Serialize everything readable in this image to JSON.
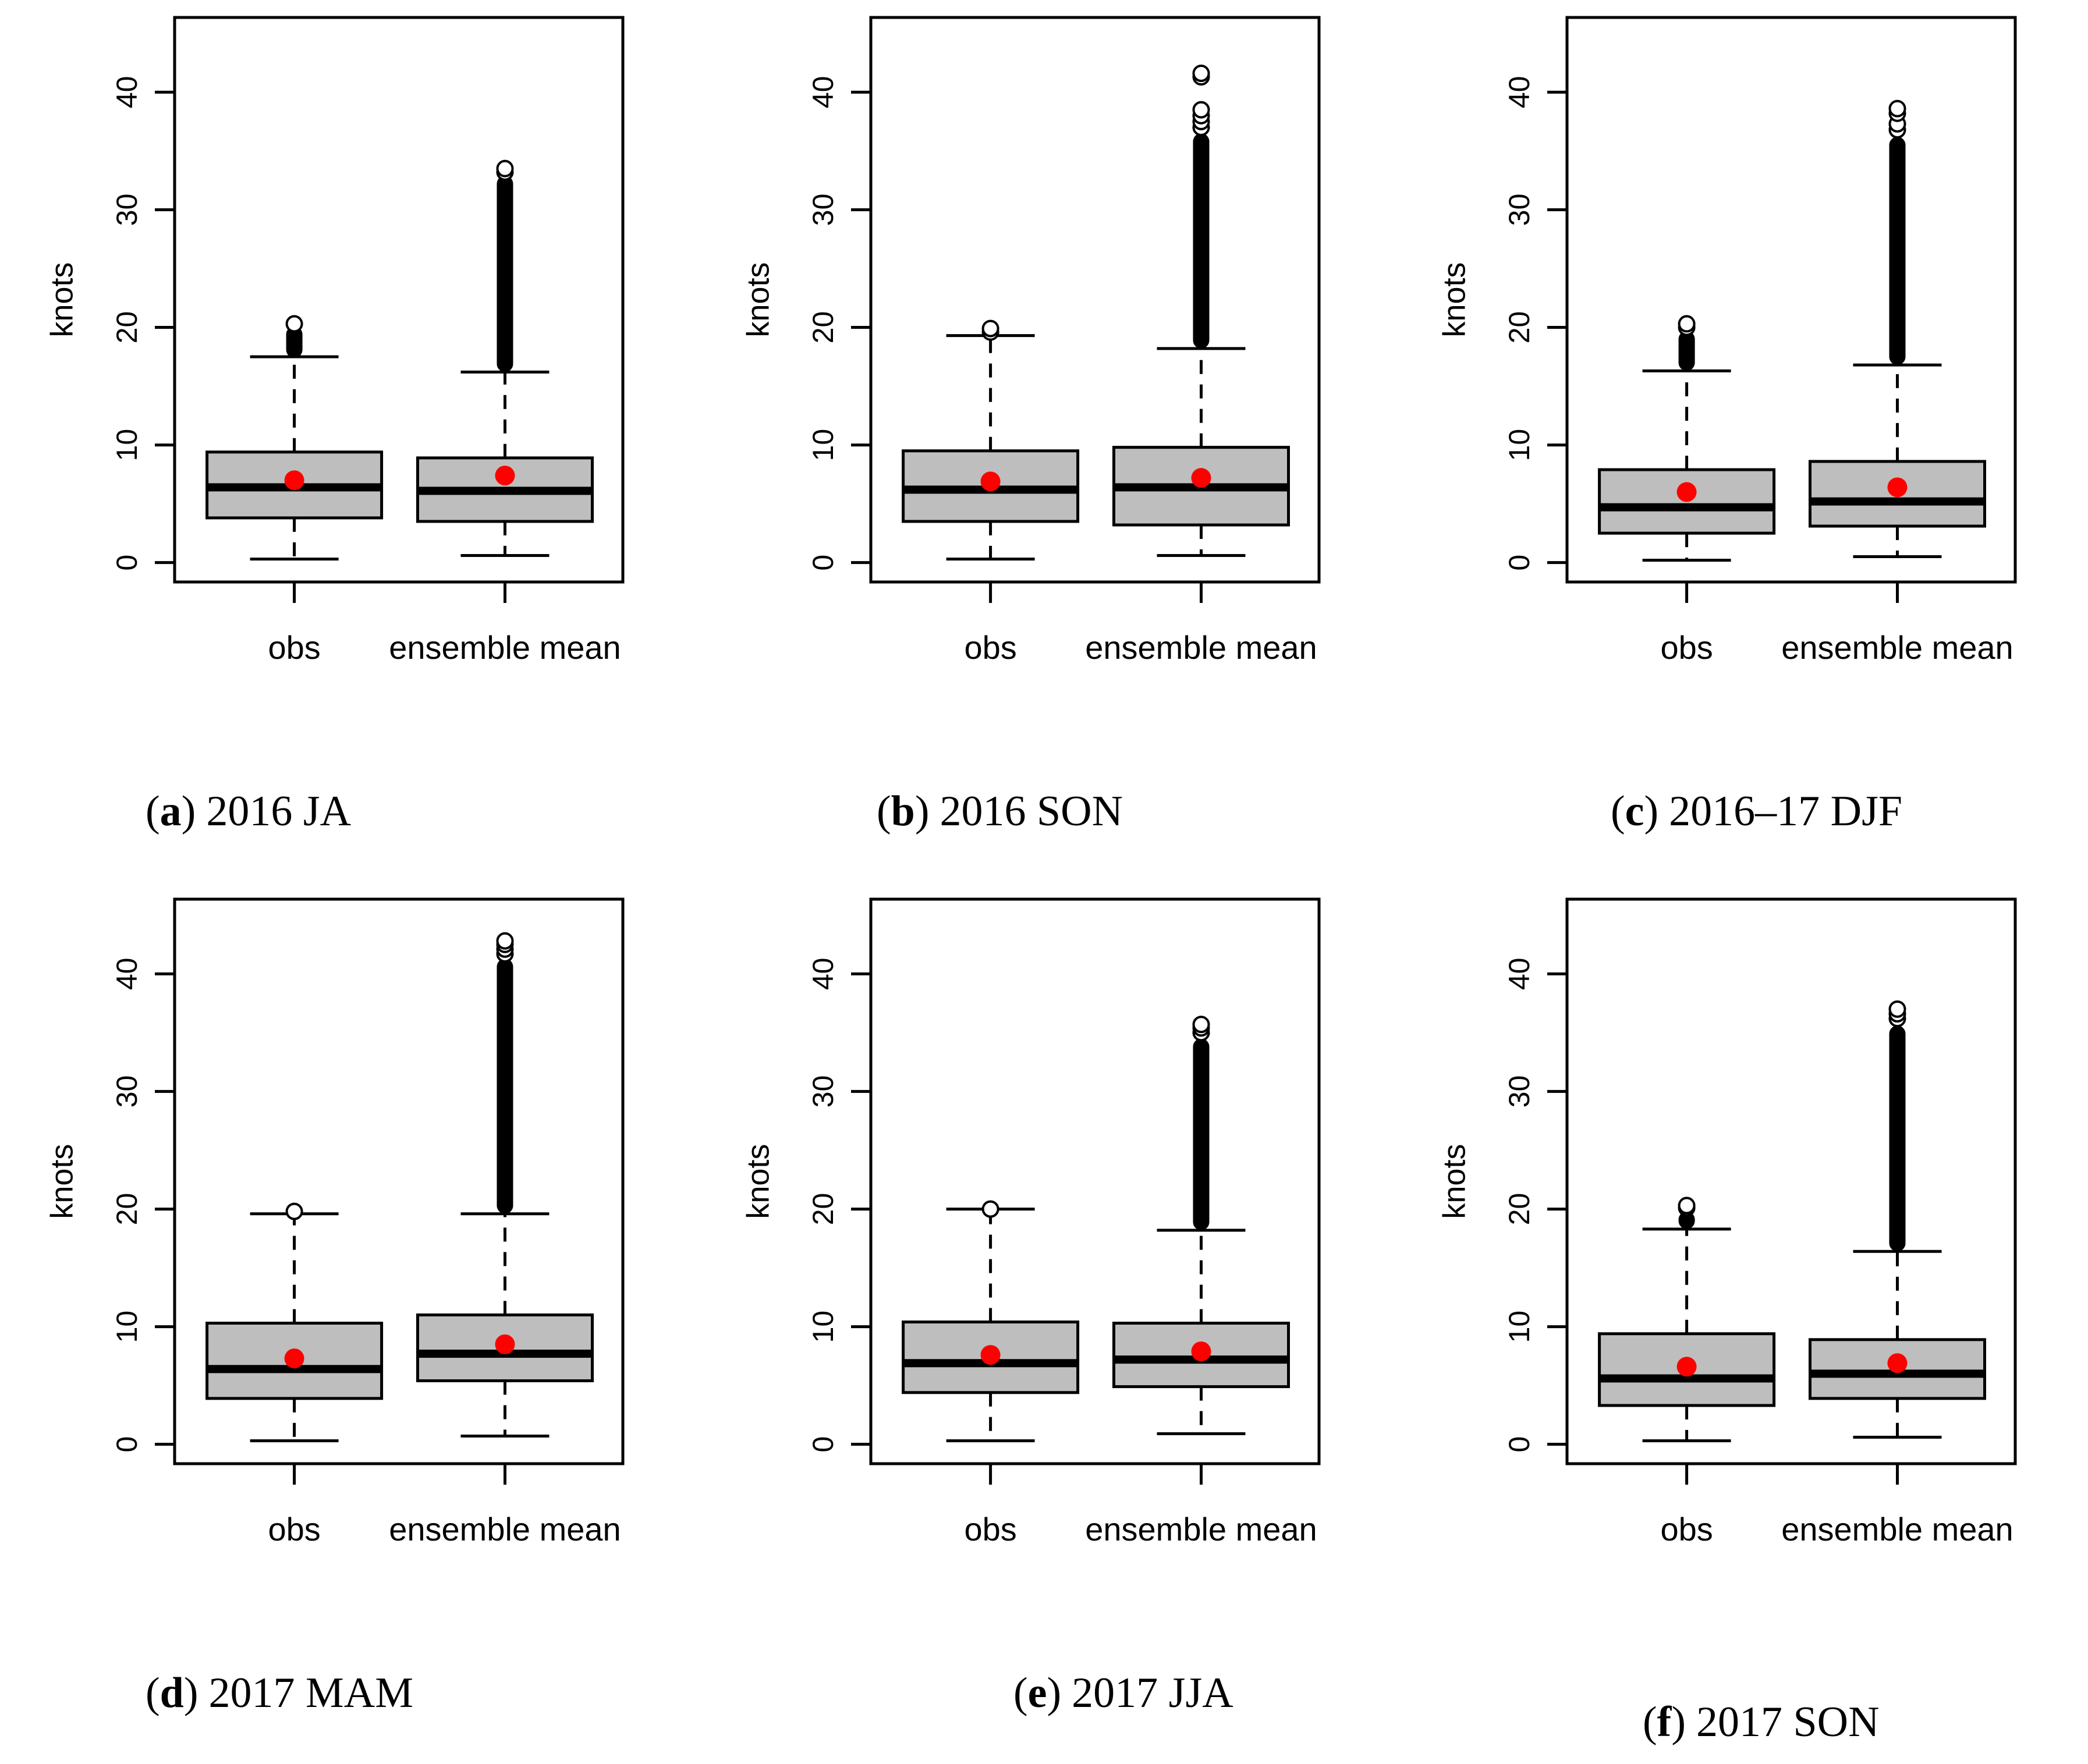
{
  "strings": {
    "paren_open": "(",
    "paren_close": ")"
  },
  "colors": {
    "box_fill": "#BEBEBE",
    "box_stroke": "#000000",
    "median": "#000000",
    "whisker": "#000000",
    "outlier": "#000000",
    "outlier_circle_fill": "#FFFFFF",
    "mean_dot": "#FF0000",
    "axis": "#000000",
    "text": "#000000",
    "plot_bg": "#FFFFFF"
  },
  "chart_data": [
    {
      "id": "a",
      "type": "boxplot",
      "caption_letter": "a",
      "caption_text": "2016 JA",
      "ylabel": "knots",
      "yticks": [
        0,
        10,
        20,
        30,
        40
      ],
      "ylim": [
        -1.65,
        46.35
      ],
      "grid": false,
      "categories": [
        "obs",
        "ensemble mean"
      ],
      "boxes": [
        {
          "label": "obs",
          "whisker_low": 0.3,
          "q1": 3.8,
          "median": 6.4,
          "q3": 9.4,
          "whisker_high": 17.5,
          "mean": 7.0,
          "outliers_dense": [
            17.4,
            20.1
          ],
          "outlier_circles": [
            20.3
          ]
        },
        {
          "label": "ensemble mean",
          "whisker_low": 0.6,
          "q1": 3.5,
          "median": 6.1,
          "q3": 8.9,
          "whisker_high": 16.2,
          "mean": 7.4,
          "outliers_dense": [
            16.2,
            32.9
          ],
          "outlier_circles": [
            33.2,
            33.5
          ]
        }
      ]
    },
    {
      "id": "b",
      "type": "boxplot",
      "caption_letter": "b",
      "caption_text": "2016 SON",
      "ylabel": "knots",
      "yticks": [
        0,
        10,
        20,
        30,
        40
      ],
      "ylim": [
        -1.65,
        46.35
      ],
      "grid": false,
      "categories": [
        "obs",
        "ensemble mean"
      ],
      "boxes": [
        {
          "label": "obs",
          "whisker_low": 0.3,
          "q1": 3.5,
          "median": 6.2,
          "q3": 9.5,
          "whisker_high": 19.3,
          "mean": 6.9,
          "outliers_dense": null,
          "outlier_circles": [
            19.6,
            19.9
          ]
        },
        {
          "label": "ensemble mean",
          "whisker_low": 0.6,
          "q1": 3.2,
          "median": 6.4,
          "q3": 9.8,
          "whisker_high": 18.2,
          "mean": 7.2,
          "outliers_dense": [
            18.2,
            36.5
          ],
          "outlier_circles": [
            37.0,
            37.5,
            38.0,
            38.5,
            41.3,
            41.6
          ]
        }
      ]
    },
    {
      "id": "c",
      "type": "boxplot",
      "caption_letter": "c",
      "caption_text": "2016–17 DJF",
      "ylabel": "knots",
      "yticks": [
        0,
        10,
        20,
        30,
        40
      ],
      "ylim": [
        -1.65,
        46.35
      ],
      "grid": false,
      "categories": [
        "obs",
        "ensemble mean"
      ],
      "boxes": [
        {
          "label": "obs",
          "whisker_low": 0.2,
          "q1": 2.5,
          "median": 4.7,
          "q3": 7.9,
          "whisker_high": 16.3,
          "mean": 6.0,
          "outliers_dense": [
            16.3,
            19.7
          ],
          "outlier_circles": [
            20.0,
            20.3
          ]
        },
        {
          "label": "ensemble mean",
          "whisker_low": 0.5,
          "q1": 3.1,
          "median": 5.2,
          "q3": 8.6,
          "whisker_high": 16.8,
          "mean": 6.4,
          "outliers_dense": [
            16.8,
            36.2
          ],
          "outlier_circles": [
            36.8,
            37.3,
            38.2,
            38.6
          ]
        }
      ]
    },
    {
      "id": "d",
      "type": "boxplot",
      "caption_letter": "d",
      "caption_text": "2017 MAM",
      "ylabel": "knots",
      "yticks": [
        0,
        10,
        20,
        30,
        40
      ],
      "ylim": [
        -1.65,
        46.35
      ],
      "grid": false,
      "categories": [
        "obs",
        "ensemble mean"
      ],
      "boxes": [
        {
          "label": "obs",
          "whisker_low": 0.3,
          "q1": 3.9,
          "median": 6.4,
          "q3": 10.3,
          "whisker_high": 19.6,
          "mean": 7.3,
          "outliers_dense": null,
          "outlier_circles": [
            19.8
          ]
        },
        {
          "label": "ensemble mean",
          "whisker_low": 0.7,
          "q1": 5.4,
          "median": 7.7,
          "q3": 11.0,
          "whisker_high": 19.6,
          "mean": 8.5,
          "outliers_dense": [
            19.6,
            41.3
          ],
          "outlier_circles": [
            41.7,
            42.1,
            42.5,
            42.8
          ]
        }
      ]
    },
    {
      "id": "e",
      "type": "boxplot",
      "caption_letter": "e",
      "caption_text": "2017 JJA",
      "ylabel": "knots",
      "yticks": [
        0,
        10,
        20,
        30,
        40
      ],
      "ylim": [
        -1.65,
        46.35
      ],
      "grid": false,
      "categories": [
        "obs",
        "ensemble mean"
      ],
      "boxes": [
        {
          "label": "obs",
          "whisker_low": 0.3,
          "q1": 4.4,
          "median": 6.9,
          "q3": 10.4,
          "whisker_high": 20.0,
          "mean": 7.6,
          "outliers_dense": null,
          "outlier_circles": [
            20.0
          ]
        },
        {
          "label": "ensemble mean",
          "whisker_low": 0.9,
          "q1": 4.9,
          "median": 7.2,
          "q3": 10.3,
          "whisker_high": 18.2,
          "mean": 7.9,
          "outliers_dense": [
            18.2,
            34.5
          ],
          "outlier_circles": [
            35.0,
            35.4,
            35.7
          ]
        }
      ]
    },
    {
      "id": "f",
      "type": "boxplot",
      "caption_letter": "f",
      "caption_text": "2017 SON",
      "ylabel": "knots",
      "yticks": [
        0,
        10,
        20,
        30,
        40
      ],
      "ylim": [
        -1.65,
        46.35
      ],
      "grid": false,
      "categories": [
        "obs",
        "ensemble mean"
      ],
      "boxes": [
        {
          "label": "obs",
          "whisker_low": 0.3,
          "q1": 3.3,
          "median": 5.6,
          "q3": 9.4,
          "whisker_high": 18.3,
          "mean": 6.6,
          "outliers_dense": [
            18.3,
            19.8
          ],
          "outlier_circles": [
            20.1,
            20.3
          ]
        },
        {
          "label": "ensemble mean",
          "whisker_low": 0.6,
          "q1": 3.9,
          "median": 6.0,
          "q3": 8.9,
          "whisker_high": 16.4,
          "mean": 6.9,
          "outliers_dense": [
            16.4,
            35.6
          ],
          "outlier_circles": [
            36.2,
            36.6,
            37.0
          ]
        }
      ]
    }
  ]
}
